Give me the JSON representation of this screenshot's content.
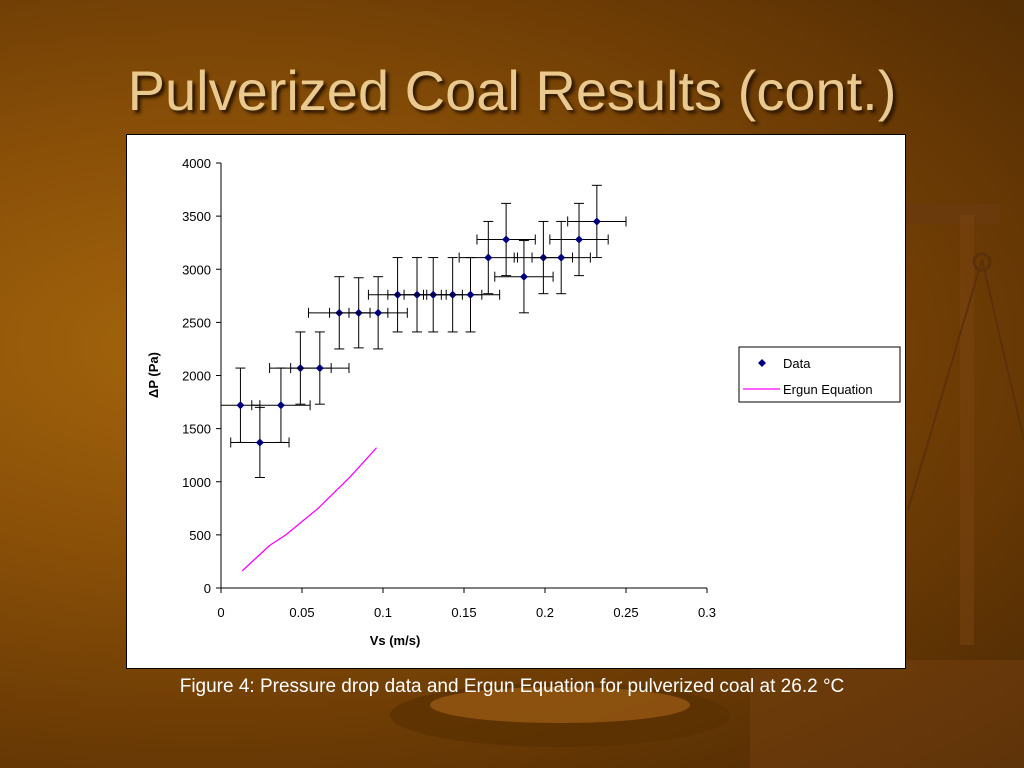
{
  "slide": {
    "title": "Pulverized Coal Results (cont.)",
    "caption": "Figure 4: Pressure drop data and Ergun Equation for pulverized coal at 26.2 °C"
  },
  "colors": {
    "background": "#8a5008",
    "title": "#e9c98e",
    "data_marker": "#00007f",
    "ergun_line": "#ff00ff"
  },
  "chart_data": {
    "type": "scatter",
    "xlabel": "Vs (m/s)",
    "ylabel": "ΔP (Pa)",
    "xlim": [
      0,
      0.3
    ],
    "ylim": [
      0,
      4000
    ],
    "xticks": [
      "0",
      "0.05",
      "0.1",
      "0.15",
      "0.2",
      "0.25",
      "0.3"
    ],
    "yticks": [
      "0",
      "500",
      "1000",
      "1500",
      "2000",
      "2500",
      "3000",
      "3500",
      "4000"
    ],
    "legend_position": "right",
    "grid": false,
    "series": [
      {
        "name": "Data",
        "kind": "markers",
        "marker": "diamond",
        "points": [
          {
            "x": 0.012,
            "y": 1720,
            "xerr": 0.012,
            "yerr": 350
          },
          {
            "x": 0.024,
            "y": 1370,
            "xerr": 0.018,
            "yerr": 330
          },
          {
            "x": 0.037,
            "y": 1720,
            "xerr": 0.018,
            "yerr": 350
          },
          {
            "x": 0.049,
            "y": 2070,
            "xerr": 0.019,
            "yerr": 340
          },
          {
            "x": 0.061,
            "y": 2070,
            "xerr": 0.018,
            "yerr": 340
          },
          {
            "x": 0.073,
            "y": 2590,
            "xerr": 0.019,
            "yerr": 340
          },
          {
            "x": 0.085,
            "y": 2590,
            "xerr": 0.018,
            "yerr": 330
          },
          {
            "x": 0.097,
            "y": 2590,
            "xerr": 0.018,
            "yerr": 340
          },
          {
            "x": 0.109,
            "y": 2760,
            "xerr": 0.018,
            "yerr": 350
          },
          {
            "x": 0.121,
            "y": 2760,
            "xerr": 0.018,
            "yerr": 350
          },
          {
            "x": 0.131,
            "y": 2760,
            "xerr": 0.018,
            "yerr": 350
          },
          {
            "x": 0.143,
            "y": 2760,
            "xerr": 0.018,
            "yerr": 350
          },
          {
            "x": 0.154,
            "y": 2760,
            "xerr": 0.018,
            "yerr": 350
          },
          {
            "x": 0.165,
            "y": 3110,
            "xerr": 0.018,
            "yerr": 340
          },
          {
            "x": 0.176,
            "y": 3280,
            "xerr": 0.018,
            "yerr": 340
          },
          {
            "x": 0.187,
            "y": 2930,
            "xerr": 0.018,
            "yerr": 340
          },
          {
            "x": 0.199,
            "y": 3110,
            "xerr": 0.018,
            "yerr": 340
          },
          {
            "x": 0.21,
            "y": 3110,
            "xerr": 0.018,
            "yerr": 340
          },
          {
            "x": 0.221,
            "y": 3280,
            "xerr": 0.018,
            "yerr": 340
          },
          {
            "x": 0.232,
            "y": 3450,
            "xerr": 0.018,
            "yerr": 340
          }
        ]
      },
      {
        "name": "Ergun Equation",
        "kind": "line",
        "x": [
          0.013,
          0.03,
          0.04,
          0.06,
          0.08,
          0.096
        ],
        "y": [
          160,
          400,
          500,
          750,
          1050,
          1320
        ]
      }
    ]
  }
}
